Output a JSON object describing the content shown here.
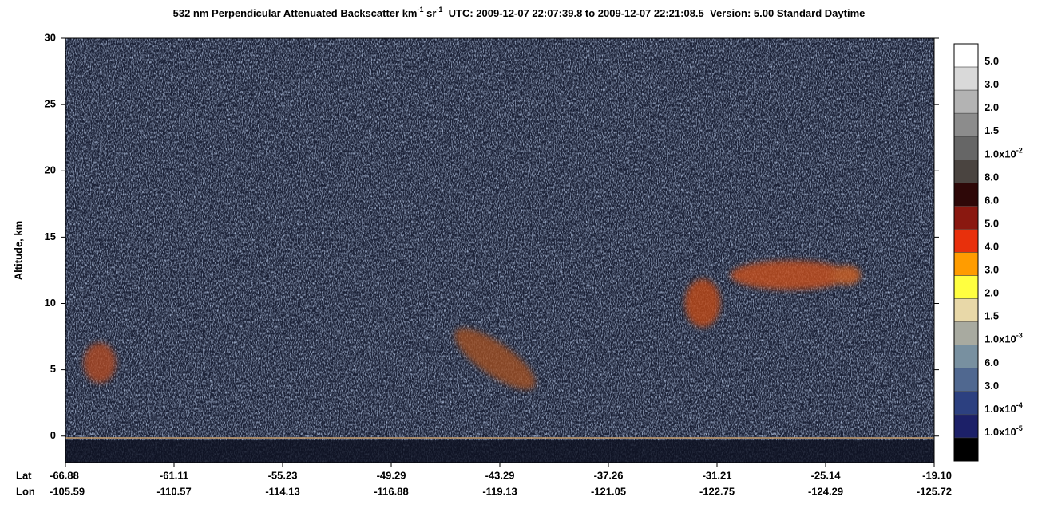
{
  "title": {
    "parts": [
      "532 nm Perpendicular Attenuated Backscatter km",
      "-1",
      " sr",
      "-1",
      "  UTC: 2009-12-07 22:07:39.8 to 2009-12-07 22:21:08.5  Version: 5.00 Standard Daytime"
    ]
  },
  "y_axis": {
    "label": "Altitude, km",
    "lim": [
      -2,
      30
    ],
    "ticks": [
      0,
      5,
      10,
      15,
      20,
      25,
      30
    ]
  },
  "x_axis": {
    "row_labels": [
      "Lat",
      "Lon"
    ],
    "lat": [
      "-66.88",
      "-61.11",
      "-55.23",
      "-49.29",
      "-43.29",
      "-37.26",
      "-31.21",
      "-25.14",
      "-19.10"
    ],
    "lon": [
      "-105.59",
      "-110.57",
      "-114.13",
      "-116.88",
      "-119.13",
      "-121.05",
      "-122.75",
      "-124.29",
      "-125.72"
    ]
  },
  "colorbar": {
    "colors": [
      "#ffffff",
      "#d9d9d9",
      "#b3b3b3",
      "#8c8c8c",
      "#666666",
      "#4a4440",
      "#2e0808",
      "#8a1810",
      "#e8300c",
      "#ff9c00",
      "#ffff40",
      "#e8d8a8",
      "#a8aaa0",
      "#7890a0",
      "#506890",
      "#2c4080",
      "#1c2068",
      "#000000"
    ],
    "labels": [
      {
        "text": "5.0"
      },
      {
        "text": "3.0"
      },
      {
        "text": "2.0"
      },
      {
        "text": "1.5"
      },
      {
        "text": "1.0x10",
        "sup": "-2"
      },
      {
        "text": "8.0"
      },
      {
        "text": "6.0"
      },
      {
        "text": "5.0"
      },
      {
        "text": "4.0"
      },
      {
        "text": "3.0"
      },
      {
        "text": "2.0"
      },
      {
        "text": "1.5"
      },
      {
        "text": "1.0x10",
        "sup": "-3"
      },
      {
        "text": "6.0"
      },
      {
        "text": "3.0"
      },
      {
        "text": "1.0x10",
        "sup": "-4"
      },
      {
        "text": "1.0x10",
        "sup": "-5"
      }
    ]
  }
}
